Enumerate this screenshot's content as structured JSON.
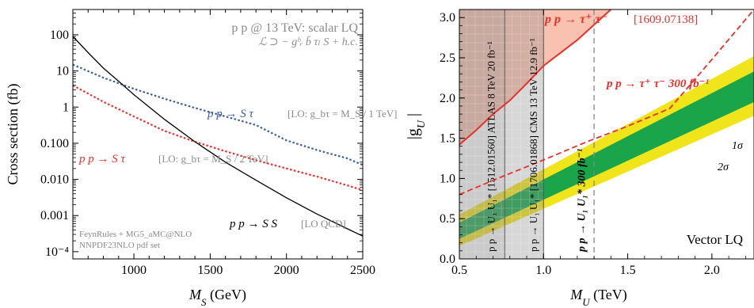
{
  "chart_data": [
    {
      "type": "line",
      "xlabel": "M_S (GeV)",
      "ylabel": "Cross section (fb)",
      "xlim": [
        600,
        2500
      ],
      "ylim_log10": [
        -4.2,
        2.7
      ],
      "yscale": "log",
      "xticks": [
        1000,
        1500,
        2000,
        2500
      ],
      "yticks": [
        {
          "v": 100,
          "label": "100"
        },
        {
          "v": 10,
          "label": "10"
        },
        {
          "v": 1,
          "label": "1"
        },
        {
          "v": 0.1,
          "label": "0.100"
        },
        {
          "v": 0.01,
          "label": "0.010"
        },
        {
          "v": 0.001,
          "label": "0.001"
        },
        {
          "v": 0.0001,
          "label": "10⁻⁴"
        }
      ],
      "header": [
        "p p @ 13 TeV: scalar LQ",
        "ℒ ⊃ − gᵇᵣ b̄ τₗ S + h.c."
      ],
      "footnote": [
        "FeynRules + MG5_aMC@NLO",
        "NNPDF23NLO pdf set"
      ],
      "series": [
        {
          "name": "p p → S τ",
          "note": "[LO: g_bτ = M_S / 1 TeV]",
          "color": "#3a5fa6",
          "style": "dotted",
          "x": [
            600,
            800,
            1000,
            1200,
            1400,
            1600,
            1800,
            2000,
            2200,
            2400,
            2500
          ],
          "y": [
            15,
            6.5,
            3.2,
            1.7,
            0.95,
            0.55,
            0.32,
            0.12,
            0.065,
            0.038,
            0.025
          ]
        },
        {
          "name": "p p → S τ",
          "note": "[LO: g_bτ = M_S / 2 TeV]",
          "color": "#e8312a",
          "style": "dotted",
          "x": [
            600,
            800,
            1000,
            1200,
            1400,
            1600,
            1800,
            2000,
            2200,
            2400,
            2500
          ],
          "y": [
            4,
            1.4,
            0.55,
            0.22,
            0.11,
            0.06,
            0.034,
            0.02,
            0.012,
            0.0068,
            0.005
          ]
        },
        {
          "name": "p p → S S",
          "note": "[LO QCD]",
          "color": "#000000",
          "style": "solid",
          "x": [
            600,
            700,
            800,
            900,
            1000,
            1200,
            1400,
            1600,
            1800,
            2000,
            2200,
            2400,
            2500
          ],
          "y": [
            90,
            32,
            12,
            5.2,
            2.2,
            0.46,
            0.11,
            0.03,
            0.0095,
            0.0031,
            0.0011,
            0.00043,
            0.00027
          ]
        }
      ]
    },
    {
      "type": "area",
      "xlabel": "M_U (TeV)",
      "ylabel": "|g_U|",
      "xlim": [
        0.5,
        2.25
      ],
      "ylim": [
        0,
        3.1
      ],
      "xticks": [
        0.5,
        1.0,
        1.5,
        2.0
      ],
      "xtick_labels": [
        "0.5",
        "1.0",
        "1.5",
        "2.0"
      ],
      "yticks": [
        0.0,
        0.5,
        1.0,
        1.5,
        2.0,
        2.5,
        3.0
      ],
      "ytick_labels": [
        "0.0",
        "0.5",
        "1.0",
        "1.5",
        "2.0",
        "2.5",
        "3.0"
      ],
      "label_vector": "Vector LQ",
      "excluded_regions": [
        {
          "label": "ATLAS 8 TeV 20 fb⁻¹",
          "ref": "[1512.01560]",
          "process": "p p → U₁ U₁*",
          "x": [
            0.5,
            0.77
          ]
        },
        {
          "label": "CMS 13 TeV 12.9 fb⁻¹",
          "ref": "[1706.01868]",
          "process": "p p → U₁ U₁*",
          "x": [
            0.77,
            1.0
          ]
        }
      ],
      "projection": {
        "label": "p p → U₁ U₁* 300 fb⁻¹",
        "x": 1.3
      },
      "tautau_limit": {
        "label": "p p → τ⁺ τ⁻",
        "ref": "[1609.07138]",
        "color": "#e8312a",
        "x": [
          0.5,
          0.6,
          0.7,
          0.8,
          0.9,
          1.0,
          1.2,
          1.4
        ],
        "y": [
          1.42,
          1.6,
          1.8,
          1.97,
          2.18,
          2.4,
          2.72,
          3.1
        ]
      },
      "tautau_projection": {
        "label": "p p → τ⁺ τ⁻ 300 fb⁻¹",
        "color": "#e8312a",
        "x": [
          0.5,
          0.75,
          1.0,
          1.25,
          1.5,
          1.75,
          2.0,
          2.25
        ],
        "y": [
          0.8,
          1.02,
          1.23,
          1.45,
          1.65,
          1.87,
          2.48,
          3.1
        ]
      },
      "bands": [
        {
          "label": "1σ",
          "color": "#1aa54a",
          "x": [
            0.5,
            2.25
          ],
          "low": [
            0.25,
            1.95
          ],
          "high": [
            0.45,
            2.33
          ]
        },
        {
          "label": "2σ",
          "color": "#f0e41a",
          "x": [
            0.5,
            2.25
          ],
          "low": [
            0.16,
            1.78
          ],
          "high": [
            0.55,
            2.52
          ]
        }
      ]
    }
  ]
}
